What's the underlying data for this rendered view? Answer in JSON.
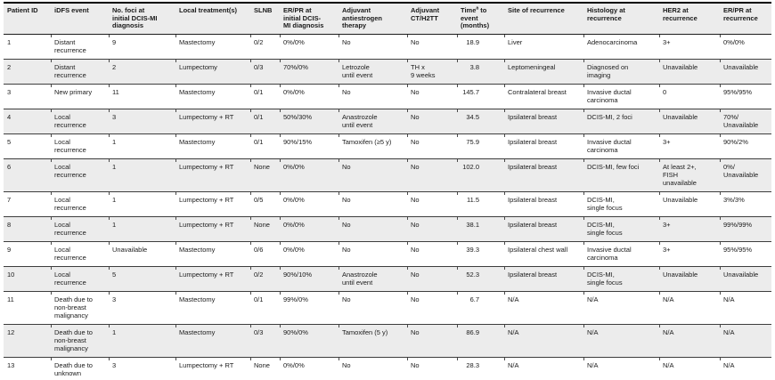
{
  "style": {
    "stripe_color": "#ececec",
    "header_bg": "#ececec",
    "rule_color": "#3d3d3d",
    "border_color": "#000000"
  },
  "table": {
    "columns": [
      "Patient ID",
      "iDFS event",
      "No. foci at\ninitial DCIS-MI\ndiagnosis",
      "Local treatment(s)",
      "SLNB",
      "ER/PR at\ninitial DCIS-\nMI diagnosis",
      "Adjuvant\nantiestrogen\ntherapy",
      "Adjuvant\nCT/H2TT",
      {
        "prefix": "Time",
        "sup": "a",
        "suffix": " to\nevent\n(months)"
      },
      "Site of recurrence",
      "Histology at\nrecurrence",
      "HER2 at\nrecurrence",
      "ER/PR at\nrecurrence"
    ],
    "rows": [
      [
        "1",
        "Distant\nrecurrence",
        "9",
        "Mastectomy",
        "0/2",
        "0%/0%",
        "No",
        "No",
        "18.9",
        "Liver",
        "Adenocarcinoma",
        "3+",
        "0%/0%"
      ],
      [
        "2",
        "Distant\nrecurrence",
        "2",
        "Lumpectomy",
        "0/3",
        "70%/0%",
        "Letrozole\nuntil event",
        "TH x\n9 weeks",
        "3.8",
        "Leptomeningeal",
        "Diagnosed on\nimaging",
        "Unavailable",
        "Unavailable"
      ],
      [
        "3",
        "New primary",
        "11",
        "Mastectomy",
        "0/1",
        "0%/0%",
        "No",
        "No",
        "145.7",
        "Contralateral breast",
        "Invasive ductal\ncarcinoma",
        "0",
        "95%/95%"
      ],
      [
        "4",
        "Local\nrecurrence",
        "3",
        "Lumpectomy + RT",
        "0/1",
        "50%/30%",
        "Anastrozole\nuntil event",
        "No",
        "34.5",
        "Ipsilateral breast",
        "DCIS-MI, 2 foci",
        "Unavailable",
        "70%/\nUnavailable"
      ],
      [
        "5",
        "Local\nrecurrence",
        "1",
        "Mastectomy",
        "0/1",
        "90%/15%",
        "Tamoxifen (≥5 y)",
        "No",
        "75.9",
        "Ipsilateral breast",
        "Invasive ductal\ncarcinoma",
        "3+",
        "90%/2%"
      ],
      [
        "6",
        "Local\nrecurrence",
        "1",
        "Lumpectomy + RT",
        "None",
        "0%/0%",
        "No",
        "No",
        "102.0",
        "Ipsilateral breast",
        "DCIS-MI, few foci",
        "At least 2+,\nFISH\nunavailable",
        "0%/\nUnavailable"
      ],
      [
        "7",
        "Local\nrecurrence",
        "1",
        "Lumpectomy + RT",
        "0/5",
        "0%/0%",
        "No",
        "No",
        "11.5",
        "Ipsilateral breast",
        "DCIS-MI,\nsingle focus",
        "Unavailable",
        "3%/3%"
      ],
      [
        "8",
        "Local\nrecurrence",
        "1",
        "Lumpectomy + RT",
        "None",
        "0%/0%",
        "No",
        "No",
        "38.1",
        "Ipsilateral breast",
        "DCIS-MI,\nsingle focus",
        "3+",
        "99%/99%"
      ],
      [
        "9",
        "Local\nrecurrence",
        "Unavailable",
        "Mastectomy",
        "0/6",
        "0%/0%",
        "No",
        "No",
        "39.3",
        "Ipsilateral chest wall",
        "Invasive ductal\ncarcinoma",
        "3+",
        "95%/95%"
      ],
      [
        "10",
        "Local\nrecurrence",
        "5",
        "Lumpectomy + RT",
        "0/2",
        "90%/10%",
        "Anastrozole\nuntil event",
        "No",
        "52.3",
        "Ipsilateral breast",
        "DCIS-MI,\nsingle focus",
        "Unavailable",
        "Unavailable"
      ],
      [
        "11",
        "Death due to\nnon-breast\nmalignancy",
        "3",
        "Mastectomy",
        "0/1",
        "99%/0%",
        "No",
        "No",
        "6.7",
        "N/A",
        "N/A",
        "N/A",
        "N/A"
      ],
      [
        "12",
        "Death due to\nnon-breast\nmalignancy",
        "1",
        "Mastectomy",
        "0/3",
        "90%/0%",
        "Tamoxifen (5 y)",
        "No",
        "86.9",
        "N/A",
        "N/A",
        "N/A",
        "N/A"
      ],
      [
        "13",
        "Death due to\nunknown\ncause",
        "3",
        "Lumpectomy + RT",
        "None",
        "0%/0%",
        "No",
        "No",
        "28.3",
        "N/A",
        "N/A",
        "N/A",
        "N/A"
      ]
    ]
  }
}
